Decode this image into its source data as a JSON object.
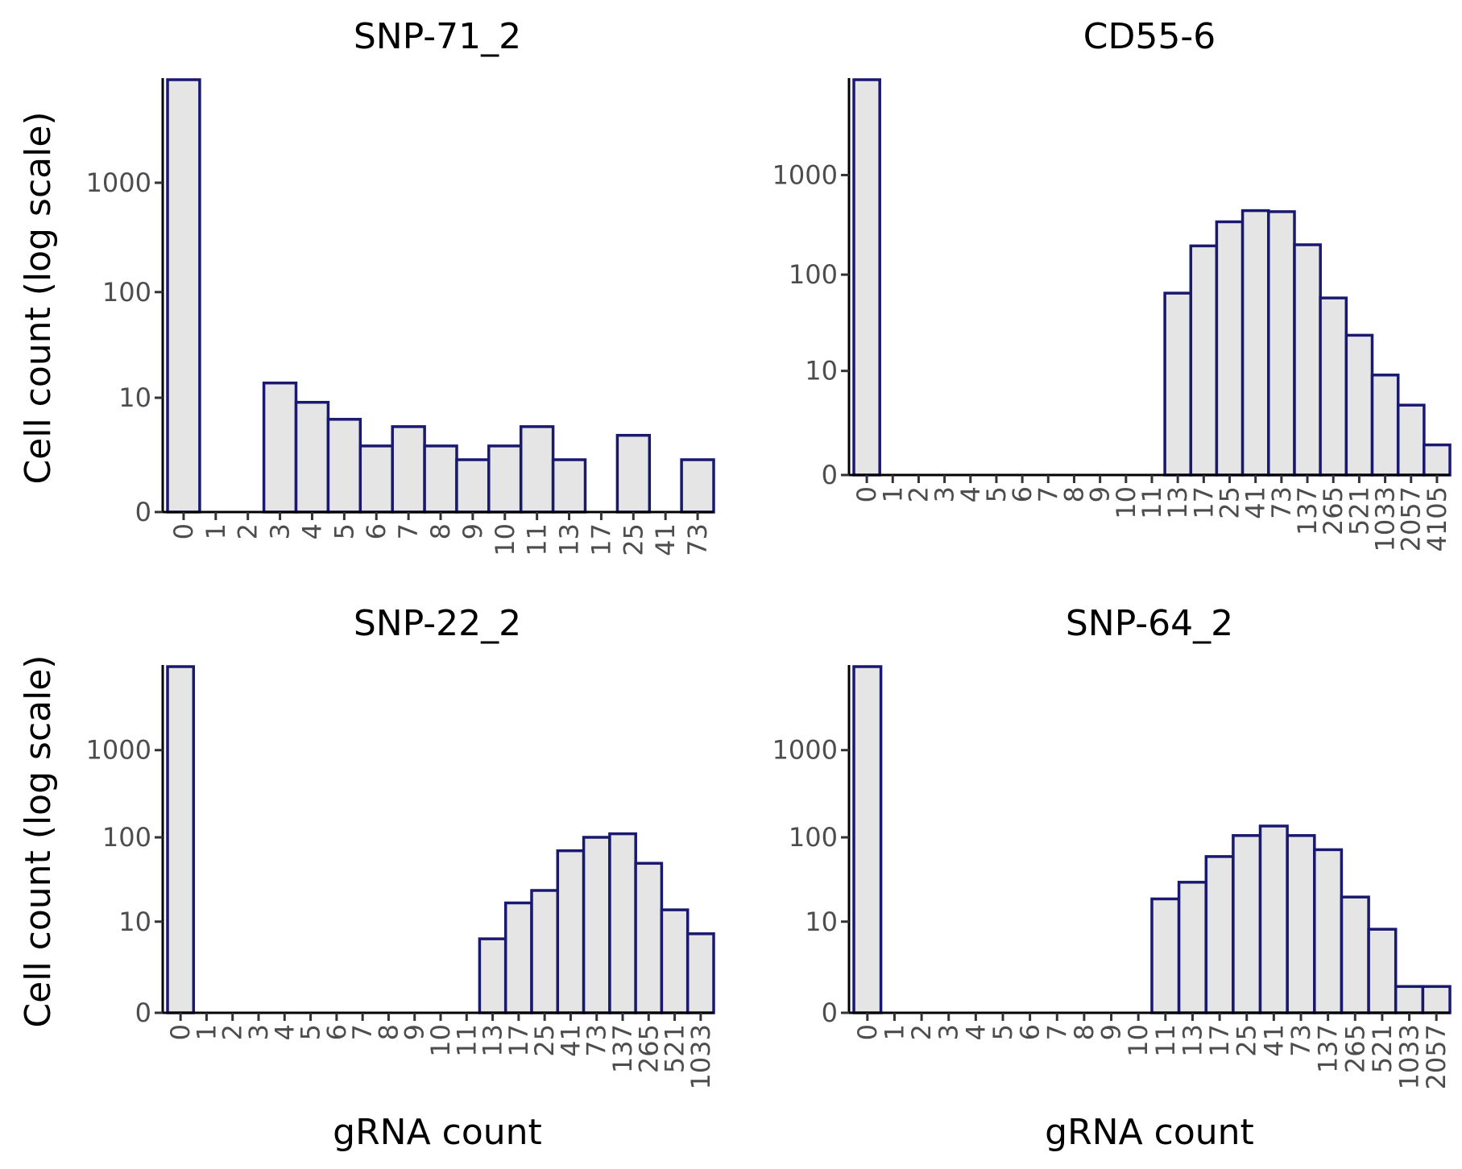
{
  "figure": {
    "ylabel": "Cell count (log scale)",
    "xlabel": "gRNA count"
  },
  "style": {
    "bar_fill": "#e5e5e5",
    "bar_stroke": "#191970",
    "axis_color": "#000000",
    "tick_label_color": "#4d4d4d"
  },
  "chart_data": [
    {
      "type": "bar",
      "title": "SNP-71_2",
      "y_scale": "log1p",
      "y_ticks": [
        0,
        10,
        100,
        1000
      ],
      "ylim": [
        0,
        8700
      ],
      "categories": [
        "0",
        "1",
        "2",
        "3",
        "4",
        "5",
        "6",
        "7",
        "8",
        "9",
        "10",
        "11",
        "13",
        "17",
        "25",
        "41",
        "73"
      ],
      "values": [
        8700,
        0,
        0,
        14,
        9,
        6,
        3,
        5,
        3,
        2,
        3,
        5,
        2,
        0,
        4,
        0,
        2
      ]
    },
    {
      "type": "bar",
      "title": "CD55-6",
      "y_scale": "log1p",
      "y_ticks": [
        0,
        10,
        100,
        1000
      ],
      "ylim": [
        0,
        9000
      ],
      "categories": [
        "0",
        "1",
        "2",
        "3",
        "4",
        "5",
        "6",
        "7",
        "8",
        "9",
        "10",
        "11",
        "13",
        "17",
        "25",
        "41",
        "73",
        "137",
        "265",
        "521",
        "1033",
        "2057",
        "4105"
      ],
      "values": [
        9000,
        0,
        0,
        0,
        0,
        0,
        0,
        0,
        0,
        0,
        0,
        0,
        65,
        195,
        340,
        440,
        430,
        200,
        58,
        24,
        9,
        4,
        1
      ]
    },
    {
      "type": "bar",
      "title": "SNP-22_2",
      "y_scale": "log1p",
      "y_ticks": [
        0,
        10,
        100,
        1000
      ],
      "ylim": [
        0,
        9000
      ],
      "categories": [
        "0",
        "1",
        "2",
        "3",
        "4",
        "5",
        "6",
        "7",
        "8",
        "9",
        "10",
        "11",
        "13",
        "17",
        "25",
        "41",
        "73",
        "137",
        "265",
        "521",
        "1033"
      ],
      "values": [
        9000,
        0,
        0,
        0,
        0,
        0,
        0,
        0,
        0,
        0,
        0,
        0,
        6,
        17,
        24,
        70,
        100,
        110,
        50,
        14,
        7
      ]
    },
    {
      "type": "bar",
      "title": "SNP-64_2",
      "y_scale": "log1p",
      "y_ticks": [
        0,
        10,
        100,
        1000
      ],
      "ylim": [
        0,
        9000
      ],
      "categories": [
        "0",
        "1",
        "2",
        "3",
        "4",
        "5",
        "6",
        "7",
        "8",
        "9",
        "10",
        "11",
        "13",
        "17",
        "25",
        "41",
        "73",
        "137",
        "265",
        "521",
        "1033",
        "2057"
      ],
      "values": [
        9000,
        0,
        0,
        0,
        0,
        0,
        0,
        0,
        0,
        0,
        0,
        19,
        30,
        60,
        105,
        135,
        105,
        72,
        20,
        8,
        1,
        1
      ]
    }
  ]
}
